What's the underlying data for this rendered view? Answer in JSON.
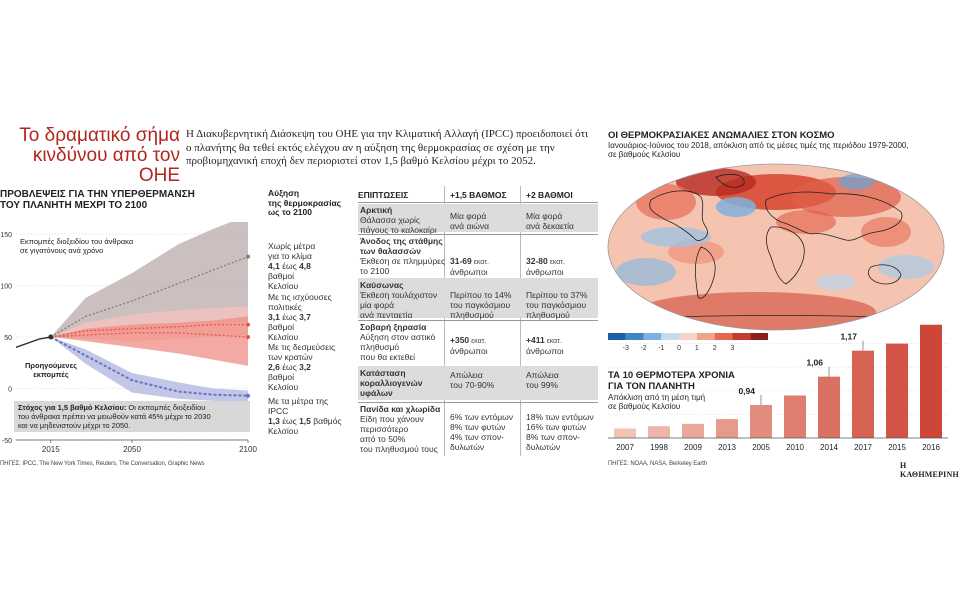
{
  "header": {
    "title_line1": "Το δραματικό σήμα",
    "title_line2": "κινδύνου από τον ΟΗΕ",
    "intro": "Η Διακυβερνητική Διάσκεψη του ΟΗΕ για την Κλιματική Αλλαγή (IPCC) προειδοποιεί ότι ο πλανήτης θα τεθεί εκτός ελέγχου αν η αύξηση της θερμοκρασίας σε σχέση με την προβιομηχανική εποχή δεν περιοριστεί στον 1,5 βαθμό Κελσίου μέχρι το 2052."
  },
  "left": {
    "heading_line1": "ΠΡΟΒΛΕΨΕΙΣ ΓΙΑ ΤΗΝ ΥΠΕΡΘΕΡΜΑΝΣΗ",
    "heading_line2": "ΤΟΥ ΠΛΑΝΗΤΗ ΜΕΧΡΙ ΤΟ 2100",
    "increase_label": [
      "Αύξηση",
      "της θερμοκρασίας",
      "ως το 2100"
    ],
    "emissions_note_line1": "Εκπομπές διοξειδίου του άνθρακα",
    "emissions_note_line2": "σε γιγατόνους ανά χρόνο",
    "past_label_line1": "Προηγούμενες",
    "past_label_line2": "εκπομπές",
    "target_line1_bold": "Στόχος για 1,5 βαθμό Κελσίου:",
    "target_line1_rest": " Οι εκπομπές διοξειδίου",
    "target_line2": "του άνθρακα πρέπει να μειωθούν κατά 45% μέχρι το 2030",
    "target_line3": "και να μηδενιστούν μέχρι το 2050.",
    "scenarios": [
      {
        "l1": "Χωρίς μέτρα",
        "l2": "για το κλίμα",
        "l3_bold": "4,1",
        "l3_mid": " έως ",
        "l3_bold2": "4,8",
        "l3_rest": " βαθμοί",
        "l4": "Κελσίου"
      },
      {
        "l1": "Με τις ισχύουσες",
        "l2": "πολιτικές",
        "l3_bold": "3,1",
        "l3_mid": " έως ",
        "l3_bold2": "3,7",
        "l3_rest": " βαθμοί",
        "l4": "Κελσίου"
      },
      {
        "l1": "Με τις δεσμεύσεις",
        "l2": "των κρατών",
        "l3_bold": "2,6",
        "l3_mid": " έως ",
        "l3_bold2": "3,2",
        "l3_rest": " βαθμοί",
        "l4": "Κελσίου"
      },
      {
        "l1": "Με τα μέτρα της IPCC",
        "l2": "",
        "l3_bold": "1,3",
        "l3_mid": " έως ",
        "l3_bold2": "1,5",
        "l3_rest": " βαθμός",
        "l4": "Κελσίου"
      }
    ],
    "source": "ΠΗΓΕΣ: IPCC, The New York Times, Reuters, The Conversation, Graphic News"
  },
  "table": {
    "col_headers": [
      "ΕΠΙΠΤΩΣΕΙΣ",
      "+1,5 ΒΑΘΜΟΣ",
      "+2 ΒΑΘΜΟΙ"
    ],
    "rows": [
      {
        "title": "Αρκτική",
        "desc": [
          "Θάλασσα χωρίς",
          "πάγους το καλοκαίρι"
        ],
        "c1": [
          "Μία φορά",
          "ανά αιώνα"
        ],
        "c2": [
          "Μία φορά",
          "ανά δεκαετία"
        ],
        "gray": true
      },
      {
        "title": "Άνοδος της στάθμης",
        "title2": "των θαλασσών",
        "desc": [
          "Έκθεση σε πλημμύρες",
          "το 2100"
        ],
        "c1_bold": "31-69",
        "c1_small": " εκατ.",
        "c1_rest": "άνθρωποι",
        "c2_bold": "32-80",
        "c2_small": " εκατ.",
        "c2_rest": "άνθρωποι",
        "gray": false
      },
      {
        "title": "Καύσωνας",
        "desc": [
          "Έκθεση τουλάχιστον",
          "μία φορά",
          "ανά πενταετία"
        ],
        "c1": [
          "Περίπου το 14%",
          "του παγκόσμιου",
          "πληθυσμού"
        ],
        "c2": [
          "Περίπου το 37%",
          "του παγκόσμιου",
          "πληθυσμού"
        ],
        "gray": true
      },
      {
        "title": "Σοβαρή ξηρασία",
        "desc": [
          "Αύξηση στον αστικό",
          "πληθυσμό",
          "που θα εκτεθεί"
        ],
        "c1_bold": "+350",
        "c1_small": " εκατ.",
        "c1_rest": "άνθρωποι",
        "c2_bold": "+411",
        "c2_small": " εκατ.",
        "c2_rest": "άνθρωποι",
        "gray": false
      },
      {
        "title": "Κατάσταση",
        "title2": "κοραλλιογενών",
        "title3": "υφάλων",
        "c1": [
          "Απώλεια",
          "του 70-90%"
        ],
        "c2": [
          "Απώλεια",
          "του 99%"
        ],
        "gray": true
      },
      {
        "title": "Πανίδα και χλωρίδα",
        "desc": [
          "Είδη που χάνουν",
          "περισσότερο",
          "από το 50%",
          "του πληθυσμού τους"
        ],
        "c1": [
          "6% των εντόμων",
          "8% των φυτών",
          "4% των σπον-",
          "δυλωτών"
        ],
        "c2": [
          "18% των εντόμων",
          "16% των φυτών",
          "8% των σπον-",
          "δυλωτών"
        ],
        "gray": false
      }
    ]
  },
  "map": {
    "heading": "ΟΙ ΘΕΡΜΟΚΡΑΣΙΑΚΕΣ ΑΝΩΜΑΛΙΕΣ ΣΤΟΝ ΚΟΣΜΟ",
    "sub_line1": "Ιανουάριος-Ιούνιος του 2018, απόκλιση από τις μέσες τιμές της περιόδου 1979-2000,",
    "sub_line2": "σε βαθμούς Κελσίου",
    "scale_labels": [
      "-3",
      "-2",
      "-1",
      "0",
      "1",
      "2",
      "3"
    ],
    "scale_colors": [
      "#1d5fa8",
      "#3f86c4",
      "#7fb2dc",
      "#c5dcef",
      "#f6d3c7",
      "#f0a489",
      "#e2694e",
      "#c43c2c",
      "#8c1f1a"
    ],
    "source": "ΠΗΓΕΣ: NOAA, NASA, Berkeley Earth"
  },
  "bars": {
    "heading_line1": "ΤΑ 10 ΘΕΡΜΟΤΕΡΑ ΧΡΟΝΙΑ",
    "heading_line2": "ΓΙΑ ΤΟΝ ΠΛΑΝΗΤΗ",
    "sub_line1": "Απόκλιση από τη μέση τιμή",
    "sub_line2": "σε βαθμούς Κελσίου"
  },
  "footer": {
    "brand": "Η ΚΑΘΗΜΕΡΙΝΗ"
  },
  "chart_data": [
    {
      "type": "area",
      "title": "ΠΡΟΒΛΕΨΕΙΣ ΓΙΑ ΤΗΝ ΥΠΕΡΘΕΡΜΑΝΣΗ ΤΟΥ ΠΛΑΝΗΤΗ ΜΕΧΡΙ ΤΟ 2100",
      "ylabel": "Εκπομπές διοξειδίου του άνθρακα σε γιγατόνους ανά χρόνο",
      "xlim": [
        2000,
        2100
      ],
      "ylim": [
        -50,
        150
      ],
      "x_ticks": [
        "2015",
        "2050",
        "2100"
      ],
      "y_ticks": [
        "150",
        "100",
        "50",
        "0",
        "-50"
      ],
      "past": {
        "x": [
          2000,
          2005,
          2010,
          2015
        ],
        "y": [
          40,
          44,
          48,
          50
        ]
      },
      "series": [
        {
          "name": "Χωρίς μέτρα για το κλίμα",
          "x": [
            2015,
            2030,
            2050,
            2070,
            2085,
            2100
          ],
          "upper": [
            50,
            88,
            112,
            140,
            155,
            168
          ],
          "lower": [
            50,
            54,
            56,
            58,
            62,
            66
          ],
          "mid": [
            50,
            70,
            85,
            102,
            115,
            128
          ]
        },
        {
          "name": "Με τις ισχύουσες πολιτικές",
          "x": [
            2015,
            2030,
            2050,
            2070,
            2085,
            2100
          ],
          "upper": [
            50,
            64,
            72,
            76,
            78,
            80
          ],
          "lower": [
            50,
            48,
            46,
            48,
            50,
            52
          ],
          "mid": [
            50,
            56,
            58,
            60,
            62,
            62
          ]
        },
        {
          "name": "Με τις δεσμεύσεις των κρατών",
          "x": [
            2015,
            2030,
            2050,
            2070,
            2085,
            2100
          ],
          "upper": [
            50,
            58,
            62,
            64,
            66,
            70
          ],
          "lower": [
            50,
            46,
            40,
            34,
            28,
            22
          ],
          "mid": [
            50,
            52,
            54,
            54,
            52,
            50
          ]
        },
        {
          "name": "Με τα μέτρα της IPCC",
          "x": [
            2015,
            2030,
            2050,
            2070,
            2085,
            2100
          ],
          "upper": [
            50,
            38,
            15,
            6,
            0,
            -2
          ],
          "lower": [
            50,
            24,
            -4,
            -10,
            -12,
            -14
          ],
          "mid": [
            50,
            32,
            8,
            -3,
            -6,
            -7
          ]
        }
      ]
    },
    {
      "type": "bar",
      "title": "ΤΑ 10 ΘΕΡΜΟΤΕΡΑ ΧΡΟΝΙΑ ΓΙΑ ΤΟΝ ΠΛΑΝΗΤΗ",
      "ylabel": "Απόκλιση από τη μέση τιμή σε βαθμούς Κελσίου",
      "categories": [
        "2007",
        "1998",
        "2009",
        "2013",
        "2005",
        "2010",
        "2014",
        "2017",
        "2015",
        "2016"
      ],
      "values": [
        0.84,
        0.85,
        0.86,
        0.88,
        0.94,
        0.98,
        1.06,
        1.17,
        1.2,
        1.28
      ],
      "value_labels": {
        "2005": "0,94",
        "2014": "1,06",
        "2017": "1,17"
      },
      "ylim": [
        0.8,
        1.3
      ]
    }
  ]
}
